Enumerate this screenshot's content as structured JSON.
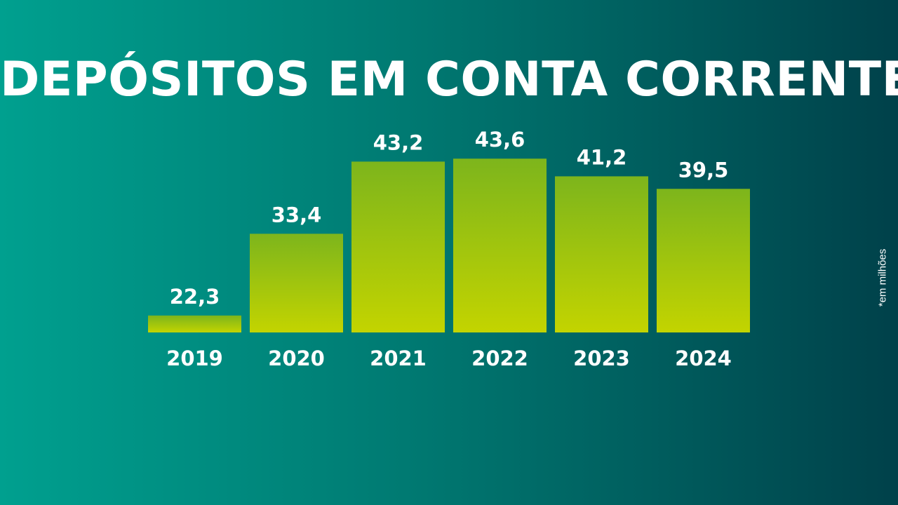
{
  "chart_data": {
    "type": "bar",
    "title": "DEPÓSITOS EM CONTA CORRENTE",
    "categories": [
      "2019",
      "2020",
      "2021",
      "2022",
      "2023",
      "2024"
    ],
    "values": [
      22.3,
      33.4,
      43.2,
      43.6,
      41.2,
      39.5
    ],
    "value_labels": [
      "22,3",
      "33,4",
      "43,2",
      "43,6",
      "41,2",
      "39,5"
    ],
    "footnote": "*em milhões",
    "ylim": [
      20,
      45
    ],
    "grid": false,
    "colors": {
      "bar_top": "#7db51c",
      "bar_bottom": "#c3d400",
      "text": "#ffffff"
    }
  }
}
